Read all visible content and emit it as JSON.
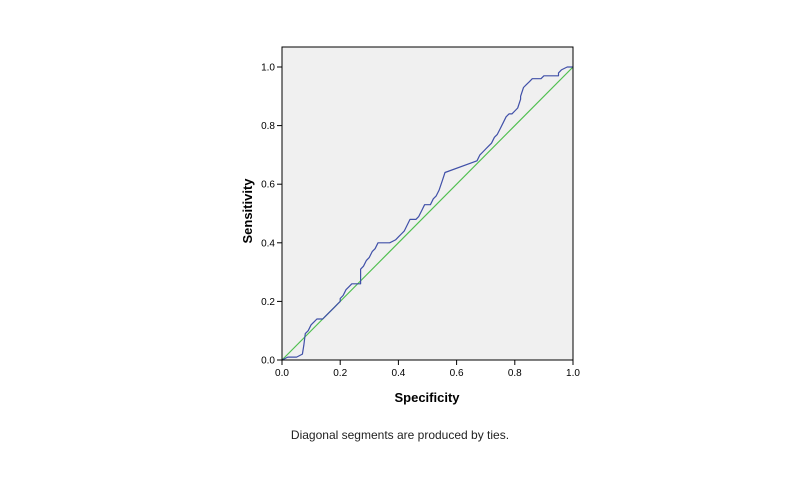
{
  "chart_data": {
    "type": "line",
    "xlabel": "Specificity",
    "ylabel": "Sensitivity",
    "xlim": [
      0.0,
      1.0
    ],
    "ylim": [
      0.0,
      1.0
    ],
    "x_ticks": [
      "0.0",
      "0.2",
      "0.4",
      "0.6",
      "0.8",
      "1.0"
    ],
    "y_ticks": [
      "0.0",
      "0.2",
      "0.4",
      "0.6",
      "0.8",
      "1.0"
    ],
    "grid": false,
    "legend": "none",
    "background_color": "#f0f0f0",
    "series": [
      {
        "color": "#4050a8",
        "x": [
          0.0,
          0.02,
          0.05,
          0.07,
          0.075,
          0.08,
          0.09,
          0.1,
          0.11,
          0.12,
          0.14,
          0.15,
          0.16,
          0.17,
          0.18,
          0.19,
          0.2,
          0.2,
          0.21,
          0.22,
          0.23,
          0.24,
          0.26,
          0.27,
          0.27,
          0.28,
          0.29,
          0.3,
          0.31,
          0.32,
          0.33,
          0.35,
          0.37,
          0.39,
          0.4,
          0.41,
          0.42,
          0.44,
          0.46,
          0.47,
          0.48,
          0.49,
          0.5,
          0.51,
          0.52,
          0.53,
          0.54,
          0.55,
          0.56,
          0.67,
          0.68,
          0.69,
          0.7,
          0.71,
          0.72,
          0.73,
          0.74,
          0.75,
          0.76,
          0.77,
          0.78,
          0.79,
          0.8,
          0.81,
          0.82,
          0.82,
          0.83,
          0.84,
          0.85,
          0.86,
          0.87,
          0.89,
          0.9,
          0.91,
          0.92,
          0.95,
          0.95,
          0.96,
          0.98,
          1.0
        ],
        "y": [
          0.0,
          0.01,
          0.01,
          0.02,
          0.05,
          0.09,
          0.1,
          0.12,
          0.13,
          0.14,
          0.14,
          0.15,
          0.16,
          0.17,
          0.18,
          0.19,
          0.2,
          0.21,
          0.22,
          0.24,
          0.25,
          0.26,
          0.26,
          0.26,
          0.31,
          0.32,
          0.34,
          0.35,
          0.37,
          0.38,
          0.4,
          0.4,
          0.4,
          0.41,
          0.42,
          0.43,
          0.44,
          0.48,
          0.48,
          0.49,
          0.51,
          0.53,
          0.53,
          0.53,
          0.55,
          0.56,
          0.58,
          0.61,
          0.64,
          0.68,
          0.7,
          0.71,
          0.72,
          0.73,
          0.74,
          0.76,
          0.77,
          0.79,
          0.81,
          0.83,
          0.84,
          0.84,
          0.85,
          0.86,
          0.89,
          0.9,
          0.93,
          0.94,
          0.95,
          0.96,
          0.96,
          0.96,
          0.97,
          0.97,
          0.97,
          0.97,
          0.98,
          0.99,
          1.0,
          1.0
        ]
      },
      {
        "color": "#4fbf4f",
        "x": [
          0.0,
          1.0
        ],
        "y": [
          0.0,
          1.0
        ]
      }
    ]
  },
  "footnote": "Diagonal segments are produced by ties."
}
